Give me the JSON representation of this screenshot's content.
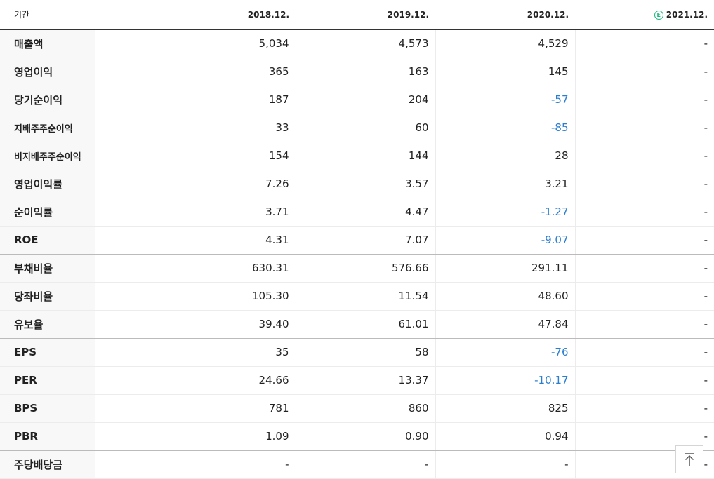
{
  "header": {
    "label": "기간",
    "periods": [
      "2018.12.",
      "2019.12.",
      "2020.12.",
      "2021.12."
    ],
    "estimate_marker": "E",
    "estimate_color": "#17b67a"
  },
  "rows": [
    {
      "label": "매출액",
      "values": [
        "5,034",
        "4,573",
        "4,529",
        "-"
      ]
    },
    {
      "label": "영업이익",
      "values": [
        "365",
        "163",
        "145",
        "-"
      ]
    },
    {
      "label": "당기순이익",
      "values": [
        "187",
        "204",
        "-57",
        "-"
      ]
    },
    {
      "label": "지배주주순이익",
      "values": [
        "33",
        "60",
        "-85",
        "-"
      ]
    },
    {
      "label": "비지배주주순이익",
      "values": [
        "154",
        "144",
        "28",
        "-"
      ]
    },
    {
      "label": "영업이익률",
      "values": [
        "7.26",
        "3.57",
        "3.21",
        "-"
      ]
    },
    {
      "label": "순이익률",
      "values": [
        "3.71",
        "4.47",
        "-1.27",
        "-"
      ]
    },
    {
      "label": "ROE",
      "values": [
        "4.31",
        "7.07",
        "-9.07",
        "-"
      ]
    },
    {
      "label": "부채비율",
      "values": [
        "630.31",
        "576.66",
        "291.11",
        "-"
      ]
    },
    {
      "label": "당좌비율",
      "values": [
        "105.30",
        "11.54",
        "48.60",
        "-"
      ]
    },
    {
      "label": "유보율",
      "values": [
        "39.40",
        "61.01",
        "47.84",
        "-"
      ]
    },
    {
      "label": "EPS",
      "values": [
        "35",
        "58",
        "-76",
        "-"
      ]
    },
    {
      "label": "PER",
      "values": [
        "24.66",
        "13.37",
        "-10.17",
        "-"
      ]
    },
    {
      "label": "BPS",
      "values": [
        "781",
        "860",
        "825",
        "-"
      ]
    },
    {
      "label": "PBR",
      "values": [
        "1.09",
        "0.90",
        "0.94",
        "-"
      ]
    },
    {
      "label": "주당배당금",
      "values": [
        "-",
        "-",
        "-",
        "-"
      ]
    }
  ],
  "colors": {
    "negative_value": "#2a7ed2",
    "text": "#222222",
    "label_background": "#f8f8f8"
  },
  "scroll_top_button": {
    "icon": "arrow-up-to-top-icon"
  }
}
